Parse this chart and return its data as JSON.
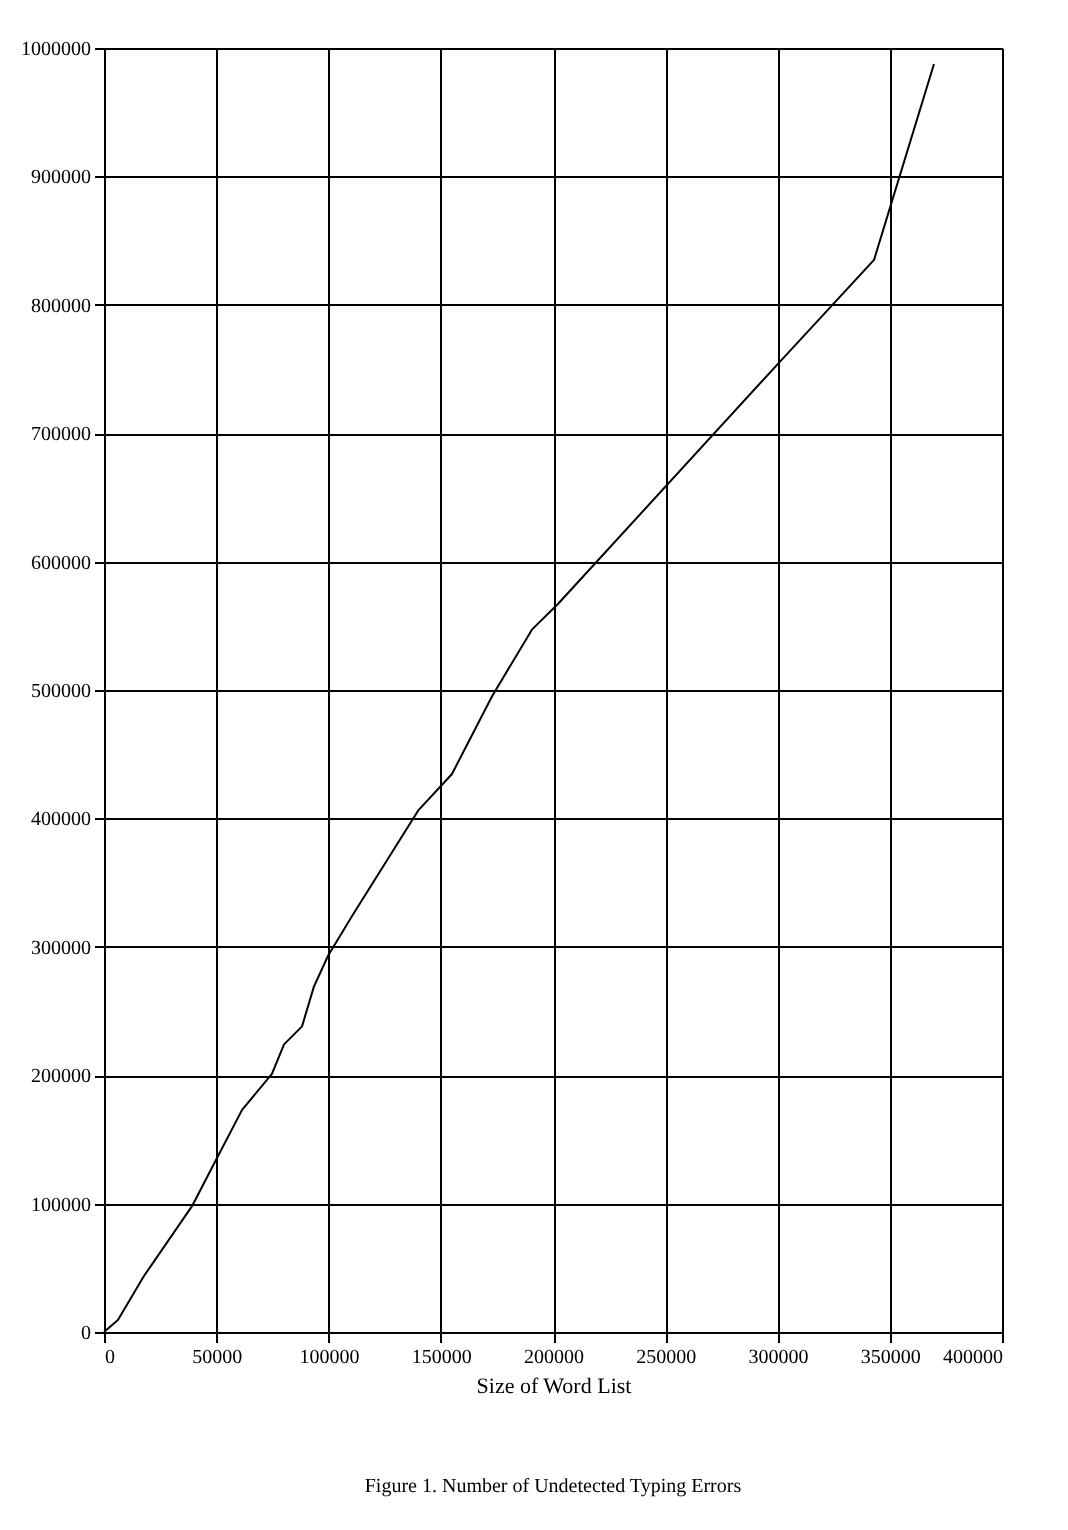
{
  "chart_data": {
    "type": "line",
    "xlabel": "Size of Word List",
    "annotations": [
      "Figure 1. Number of Undetected Typing Errors"
    ],
    "series": [
      {
        "color": "#000000",
        "x": [
          0,
          6200,
          17800,
          39200,
          49000,
          61500,
          74800,
          80200,
          88200,
          93500,
          99800,
          110500,
          139900,
          155000,
          172800,
          190600,
          202200,
          300200,
          343000,
          369700
        ],
        "values": [
          0,
          9300,
          43600,
          98000,
          131000,
          173000,
          201000,
          224000,
          238000,
          269000,
          293000,
          324000,
          406000,
          434600,
          495000,
          547000,
          567000,
          754000,
          835000,
          987500
        ]
      }
    ],
    "xlim": [
      0,
      400000
    ],
    "xticks": [
      0,
      50000,
      100000,
      150000,
      200000,
      250000,
      300000,
      350000,
      400000
    ],
    "ylim": [
      0,
      1000000
    ],
    "yticks": [
      0,
      100000,
      200000,
      300000,
      400000,
      500000,
      600000,
      700000,
      800000,
      900000,
      1000000
    ],
    "grid": true,
    "legend": false,
    "marker": "none",
    "line_style": "solid"
  }
}
